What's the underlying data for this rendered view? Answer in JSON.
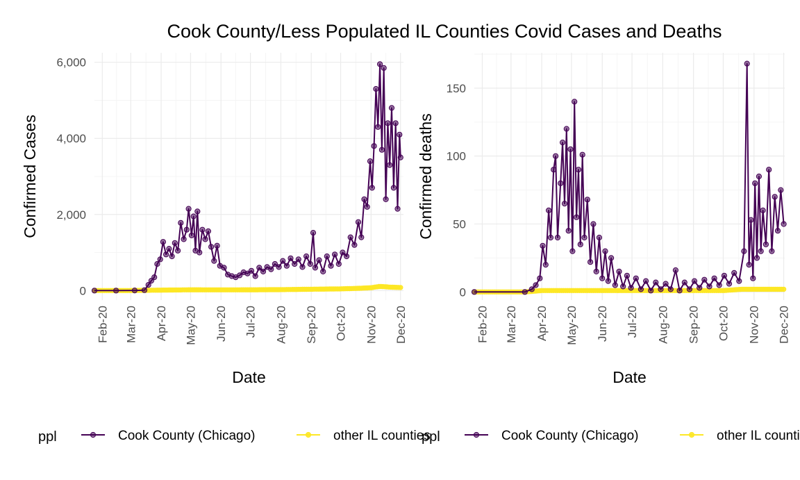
{
  "title": "Cook County/Less Populated IL Counties Covid Cases and Deaths",
  "colors": {
    "cook": "#440154",
    "other": "#FDE725",
    "grid_major": "#ebebeb",
    "grid_minor": "#f5f5f5",
    "tick_text": "#4d4d4d"
  },
  "legend": {
    "title": "ppl",
    "entries": [
      "Cook County (Chicago)",
      "other IL counties"
    ]
  },
  "chart_data": [
    {
      "type": "line",
      "xlabel": "Date",
      "ylabel": "Confirmed Cases",
      "x_ticks": [
        "Feb-20",
        "Mar-20",
        "Apr-20",
        "May-20",
        "Jun-20",
        "Jul-20",
        "Aug-20",
        "Sep-20",
        "Oct-20",
        "Nov-20",
        "Dec-20"
      ],
      "y_ticks": [
        0,
        2000,
        4000,
        6000
      ],
      "y_tick_labels": [
        "0",
        "2,000",
        "4,000",
        "6,000"
      ],
      "xlim": [
        "2020-01-24",
        "2020-12-04"
      ],
      "ylim": [
        -250,
        6250
      ],
      "grid": true,
      "legend_position": "bottom",
      "series": [
        {
          "name": "Cook County (Chicago)",
          "color": "#440154",
          "points": [
            [
              "2020-01-24",
              0
            ],
            [
              "2020-02-15",
              1
            ],
            [
              "2020-03-05",
              3
            ],
            [
              "2020-03-15",
              12
            ],
            [
              "2020-03-19",
              150
            ],
            [
              "2020-03-22",
              260
            ],
            [
              "2020-03-25",
              350
            ],
            [
              "2020-03-28",
              700
            ],
            [
              "2020-03-31",
              820
            ],
            [
              "2020-04-03",
              1280
            ],
            [
              "2020-04-06",
              950
            ],
            [
              "2020-04-09",
              1100
            ],
            [
              "2020-04-12",
              900
            ],
            [
              "2020-04-15",
              1250
            ],
            [
              "2020-04-18",
              1050
            ],
            [
              "2020-04-21",
              1780
            ],
            [
              "2020-04-24",
              1350
            ],
            [
              "2020-04-27",
              1600
            ],
            [
              "2020-04-29",
              2150
            ],
            [
              "2020-05-02",
              1450
            ],
            [
              "2020-05-04",
              1950
            ],
            [
              "2020-05-06",
              1050
            ],
            [
              "2020-05-08",
              2080
            ],
            [
              "2020-05-10",
              1000
            ],
            [
              "2020-05-13",
              1600
            ],
            [
              "2020-05-16",
              1350
            ],
            [
              "2020-05-19",
              1560
            ],
            [
              "2020-05-22",
              1150
            ],
            [
              "2020-05-25",
              780
            ],
            [
              "2020-05-28",
              1180
            ],
            [
              "2020-05-31",
              650
            ],
            [
              "2020-06-04",
              600
            ],
            [
              "2020-06-08",
              420
            ],
            [
              "2020-06-12",
              380
            ],
            [
              "2020-06-16",
              350
            ],
            [
              "2020-06-20",
              400
            ],
            [
              "2020-06-24",
              480
            ],
            [
              "2020-06-28",
              450
            ],
            [
              "2020-07-02",
              520
            ],
            [
              "2020-07-06",
              380
            ],
            [
              "2020-07-10",
              600
            ],
            [
              "2020-07-14",
              500
            ],
            [
              "2020-07-18",
              620
            ],
            [
              "2020-07-22",
              560
            ],
            [
              "2020-07-26",
              700
            ],
            [
              "2020-07-30",
              620
            ],
            [
              "2020-08-03",
              780
            ],
            [
              "2020-08-07",
              650
            ],
            [
              "2020-08-11",
              850
            ],
            [
              "2020-08-15",
              700
            ],
            [
              "2020-08-19",
              820
            ],
            [
              "2020-08-23",
              620
            ],
            [
              "2020-08-27",
              900
            ],
            [
              "2020-08-31",
              700
            ],
            [
              "2020-09-03",
              1520
            ],
            [
              "2020-09-05",
              600
            ],
            [
              "2020-09-09",
              800
            ],
            [
              "2020-09-13",
              500
            ],
            [
              "2020-09-17",
              900
            ],
            [
              "2020-09-21",
              650
            ],
            [
              "2020-09-25",
              950
            ],
            [
              "2020-09-29",
              700
            ],
            [
              "2020-10-03",
              1000
            ],
            [
              "2020-10-07",
              900
            ],
            [
              "2020-10-11",
              1400
            ],
            [
              "2020-10-15",
              1200
            ],
            [
              "2020-10-19",
              1800
            ],
            [
              "2020-10-22",
              1400
            ],
            [
              "2020-10-25",
              2400
            ],
            [
              "2020-10-28",
              2200
            ],
            [
              "2020-10-31",
              3400
            ],
            [
              "2020-11-02",
              2700
            ],
            [
              "2020-11-04",
              3800
            ],
            [
              "2020-11-06",
              5300
            ],
            [
              "2020-11-08",
              4300
            ],
            [
              "2020-11-10",
              5950
            ],
            [
              "2020-11-12",
              3700
            ],
            [
              "2020-11-14",
              5850
            ],
            [
              "2020-11-16",
              2400
            ],
            [
              "2020-11-18",
              4400
            ],
            [
              "2020-11-20",
              3300
            ],
            [
              "2020-11-22",
              4800
            ],
            [
              "2020-11-24",
              2700
            ],
            [
              "2020-11-26",
              4400
            ],
            [
              "2020-11-28",
              2150
            ],
            [
              "2020-11-30",
              4100
            ],
            [
              "2020-12-01",
              3500
            ]
          ]
        },
        {
          "name": "other IL counties",
          "color": "#FDE725",
          "points": [
            [
              "2020-01-24",
              0
            ],
            [
              "2020-03-01",
              1
            ],
            [
              "2020-04-01",
              12
            ],
            [
              "2020-05-01",
              20
            ],
            [
              "2020-06-01",
              18
            ],
            [
              "2020-07-01",
              20
            ],
            [
              "2020-08-01",
              25
            ],
            [
              "2020-09-01",
              35
            ],
            [
              "2020-10-01",
              45
            ],
            [
              "2020-10-20",
              60
            ],
            [
              "2020-11-01",
              75
            ],
            [
              "2020-11-10",
              110
            ],
            [
              "2020-11-20",
              90
            ],
            [
              "2020-12-01",
              80
            ]
          ]
        }
      ]
    },
    {
      "type": "line",
      "xlabel": "Date",
      "ylabel": "Confirmed deaths",
      "x_ticks": [
        "Feb-20",
        "Mar-20",
        "Apr-20",
        "May-20",
        "Jun-20",
        "Jul-20",
        "Aug-20",
        "Sep-20",
        "Oct-20",
        "Nov-20",
        "Dec-20"
      ],
      "y_ticks": [
        0,
        50,
        100,
        150
      ],
      "y_tick_labels": [
        "0",
        "50",
        "100",
        "150"
      ],
      "xlim": [
        "2020-01-24",
        "2020-12-02"
      ],
      "ylim": [
        -6,
        176
      ],
      "grid": true,
      "legend_position": "bottom",
      "series": [
        {
          "name": "Cook County (Chicago)",
          "color": "#440154",
          "points": [
            [
              "2020-01-24",
              0
            ],
            [
              "2020-03-15",
              0
            ],
            [
              "2020-03-22",
              2
            ],
            [
              "2020-03-26",
              5
            ],
            [
              "2020-03-30",
              10
            ],
            [
              "2020-04-02",
              34
            ],
            [
              "2020-04-05",
              20
            ],
            [
              "2020-04-08",
              60
            ],
            [
              "2020-04-10",
              40
            ],
            [
              "2020-04-13",
              90
            ],
            [
              "2020-04-15",
              100
            ],
            [
              "2020-04-17",
              40
            ],
            [
              "2020-04-20",
              80
            ],
            [
              "2020-04-22",
              110
            ],
            [
              "2020-04-24",
              65
            ],
            [
              "2020-04-26",
              120
            ],
            [
              "2020-04-28",
              45
            ],
            [
              "2020-04-30",
              105
            ],
            [
              "2020-05-02",
              30
            ],
            [
              "2020-05-04",
              140
            ],
            [
              "2020-05-06",
              55
            ],
            [
              "2020-05-08",
              90
            ],
            [
              "2020-05-10",
              35
            ],
            [
              "2020-05-12",
              101
            ],
            [
              "2020-05-14",
              40
            ],
            [
              "2020-05-17",
              68
            ],
            [
              "2020-05-20",
              22
            ],
            [
              "2020-05-23",
              50
            ],
            [
              "2020-05-26",
              15
            ],
            [
              "2020-05-29",
              40
            ],
            [
              "2020-06-01",
              10
            ],
            [
              "2020-06-04",
              30
            ],
            [
              "2020-06-07",
              8
            ],
            [
              "2020-06-10",
              25
            ],
            [
              "2020-06-14",
              5
            ],
            [
              "2020-06-18",
              15
            ],
            [
              "2020-06-22",
              4
            ],
            [
              "2020-06-26",
              12
            ],
            [
              "2020-06-30",
              3
            ],
            [
              "2020-07-05",
              10
            ],
            [
              "2020-07-10",
              2
            ],
            [
              "2020-07-15",
              8
            ],
            [
              "2020-07-20",
              1
            ],
            [
              "2020-07-25",
              7
            ],
            [
              "2020-07-30",
              2
            ],
            [
              "2020-08-04",
              6
            ],
            [
              "2020-08-09",
              2
            ],
            [
              "2020-08-14",
              16
            ],
            [
              "2020-08-18",
              1
            ],
            [
              "2020-08-23",
              7
            ],
            [
              "2020-08-28",
              2
            ],
            [
              "2020-09-02",
              8
            ],
            [
              "2020-09-07",
              3
            ],
            [
              "2020-09-12",
              9
            ],
            [
              "2020-09-17",
              4
            ],
            [
              "2020-09-22",
              10
            ],
            [
              "2020-09-27",
              5
            ],
            [
              "2020-10-02",
              12
            ],
            [
              "2020-10-07",
              6
            ],
            [
              "2020-10-12",
              14
            ],
            [
              "2020-10-17",
              8
            ],
            [
              "2020-10-22",
              30
            ],
            [
              "2020-10-25",
              168
            ],
            [
              "2020-10-27",
              20
            ],
            [
              "2020-10-29",
              53
            ],
            [
              "2020-10-31",
              10
            ],
            [
              "2020-11-02",
              80
            ],
            [
              "2020-11-04",
              25
            ],
            [
              "2020-11-06",
              85
            ],
            [
              "2020-11-08",
              30
            ],
            [
              "2020-11-10",
              60
            ],
            [
              "2020-11-13",
              35
            ],
            [
              "2020-11-16",
              90
            ],
            [
              "2020-11-19",
              30
            ],
            [
              "2020-11-22",
              70
            ],
            [
              "2020-11-25",
              45
            ],
            [
              "2020-11-28",
              75
            ],
            [
              "2020-12-01",
              50
            ]
          ]
        },
        {
          "name": "other IL counties",
          "color": "#FDE725",
          "points": [
            [
              "2020-01-24",
              0
            ],
            [
              "2020-03-15",
              0
            ],
            [
              "2020-04-01",
              1
            ],
            [
              "2020-05-01",
              1
            ],
            [
              "2020-06-01",
              1
            ],
            [
              "2020-07-01",
              1
            ],
            [
              "2020-08-01",
              1
            ],
            [
              "2020-09-01",
              1
            ],
            [
              "2020-10-01",
              1
            ],
            [
              "2020-10-20",
              2
            ],
            [
              "2020-11-01",
              2
            ],
            [
              "2020-11-15",
              2
            ],
            [
              "2020-12-01",
              2
            ]
          ]
        }
      ]
    }
  ]
}
